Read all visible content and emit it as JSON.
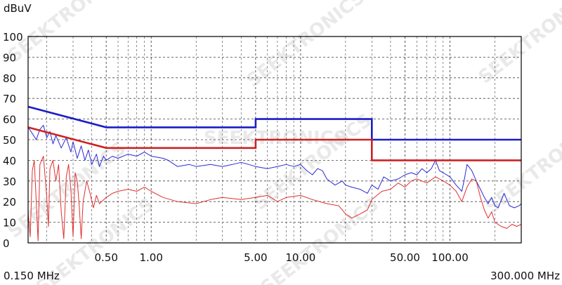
{
  "watermark": "SEEKTRONICS",
  "chart_data": {
    "type": "line",
    "title": "",
    "ylabel": "dBuV",
    "xlabel": "",
    "x_scale": "log",
    "xlim": [
      0.15,
      300
    ],
    "ylim": [
      0,
      100
    ],
    "grid": true,
    "x_start_label": "0.150 MHz",
    "x_end_label": "300.000 MHz",
    "x_tick_values": [
      0.5,
      1,
      5,
      10,
      50,
      100
    ],
    "x_tick_labels": [
      "0.50",
      "1.00",
      "5.00",
      "10.00",
      "50.00",
      "100.00"
    ],
    "y_ticks": [
      0,
      10,
      20,
      30,
      40,
      50,
      60,
      70,
      80,
      90,
      100
    ],
    "limit_lines": [
      {
        "color": "#1c1cc8",
        "points": [
          [
            0.15,
            66
          ],
          [
            0.5,
            56
          ],
          [
            5,
            56
          ],
          [
            5,
            60
          ],
          [
            30,
            60
          ],
          [
            30,
            50
          ],
          [
            300,
            50
          ]
        ]
      },
      {
        "color": "#cc2222",
        "points": [
          [
            0.15,
            56
          ],
          [
            0.5,
            46
          ],
          [
            5,
            46
          ],
          [
            5,
            50
          ],
          [
            30,
            50
          ],
          [
            30,
            40
          ],
          [
            300,
            40
          ]
        ]
      }
    ],
    "series": [
      {
        "color": "#2a2ad8",
        "points": [
          [
            0.15,
            56
          ],
          [
            0.16,
            53
          ],
          [
            0.17,
            50
          ],
          [
            0.18,
            55
          ],
          [
            0.19,
            57
          ],
          [
            0.2,
            51
          ],
          [
            0.21,
            54
          ],
          [
            0.22,
            48
          ],
          [
            0.23,
            52
          ],
          [
            0.25,
            46
          ],
          [
            0.27,
            51
          ],
          [
            0.29,
            44
          ],
          [
            0.3,
            49
          ],
          [
            0.32,
            41
          ],
          [
            0.34,
            47
          ],
          [
            0.36,
            40
          ],
          [
            0.38,
            45
          ],
          [
            0.4,
            38
          ],
          [
            0.43,
            43
          ],
          [
            0.45,
            37
          ],
          [
            0.48,
            42
          ],
          [
            0.5,
            40
          ],
          [
            0.55,
            42
          ],
          [
            0.6,
            41
          ],
          [
            0.7,
            43
          ],
          [
            0.8,
            42
          ],
          [
            0.9,
            44
          ],
          [
            1.0,
            42
          ],
          [
            1.2,
            41
          ],
          [
            1.3,
            40
          ],
          [
            1.5,
            37
          ],
          [
            1.8,
            38
          ],
          [
            2.0,
            37
          ],
          [
            2.5,
            38
          ],
          [
            3.0,
            37
          ],
          [
            3.5,
            38
          ],
          [
            4.0,
            39
          ],
          [
            4.5,
            38
          ],
          [
            5.0,
            37
          ],
          [
            6.0,
            36
          ],
          [
            7.0,
            37
          ],
          [
            8.0,
            38
          ],
          [
            9.0,
            37
          ],
          [
            10,
            38
          ],
          [
            11,
            35
          ],
          [
            12,
            33
          ],
          [
            13,
            36
          ],
          [
            14,
            35
          ],
          [
            15,
            31
          ],
          [
            17,
            28
          ],
          [
            19,
            30
          ],
          [
            20,
            28
          ],
          [
            22,
            27
          ],
          [
            25,
            26
          ],
          [
            28,
            24
          ],
          [
            30,
            28
          ],
          [
            33,
            26
          ],
          [
            36,
            32
          ],
          [
            40,
            30
          ],
          [
            45,
            31
          ],
          [
            50,
            33
          ],
          [
            55,
            34
          ],
          [
            60,
            33
          ],
          [
            65,
            36
          ],
          [
            70,
            34
          ],
          [
            75,
            36
          ],
          [
            80,
            40
          ],
          [
            85,
            35
          ],
          [
            90,
            34
          ],
          [
            100,
            32
          ],
          [
            110,
            28
          ],
          [
            120,
            25
          ],
          [
            125,
            31
          ],
          [
            130,
            38
          ],
          [
            140,
            35
          ],
          [
            150,
            30
          ],
          [
            160,
            26
          ],
          [
            170,
            22
          ],
          [
            180,
            19
          ],
          [
            190,
            22
          ],
          [
            200,
            18
          ],
          [
            210,
            17
          ],
          [
            230,
            24
          ],
          [
            250,
            18
          ],
          [
            270,
            17
          ],
          [
            290,
            18
          ],
          [
            300,
            19
          ]
        ]
      },
      {
        "color": "#e03030",
        "points": [
          [
            0.15,
            15
          ],
          [
            0.155,
            3
          ],
          [
            0.16,
            35
          ],
          [
            0.165,
            40
          ],
          [
            0.17,
            20
          ],
          [
            0.175,
            1
          ],
          [
            0.18,
            38
          ],
          [
            0.19,
            42
          ],
          [
            0.2,
            22
          ],
          [
            0.205,
            8
          ],
          [
            0.21,
            36
          ],
          [
            0.22,
            40
          ],
          [
            0.23,
            30
          ],
          [
            0.24,
            38
          ],
          [
            0.25,
            15
          ],
          [
            0.26,
            2
          ],
          [
            0.27,
            32
          ],
          [
            0.28,
            38
          ],
          [
            0.29,
            26
          ],
          [
            0.3,
            3
          ],
          [
            0.31,
            34
          ],
          [
            0.32,
            30
          ],
          [
            0.33,
            18
          ],
          [
            0.34,
            2
          ],
          [
            0.35,
            20
          ],
          [
            0.37,
            30
          ],
          [
            0.39,
            24
          ],
          [
            0.41,
            17
          ],
          [
            0.43,
            23
          ],
          [
            0.45,
            19
          ],
          [
            0.5,
            22
          ],
          [
            0.55,
            24
          ],
          [
            0.6,
            25
          ],
          [
            0.7,
            26
          ],
          [
            0.8,
            25
          ],
          [
            0.9,
            27
          ],
          [
            1.0,
            25
          ],
          [
            1.2,
            22
          ],
          [
            1.5,
            20
          ],
          [
            2.0,
            19
          ],
          [
            2.5,
            21
          ],
          [
            3.0,
            22
          ],
          [
            4.0,
            21
          ],
          [
            5.0,
            22
          ],
          [
            6.0,
            23
          ],
          [
            7.0,
            20
          ],
          [
            8.0,
            22
          ],
          [
            10,
            23
          ],
          [
            12,
            21
          ],
          [
            15,
            19
          ],
          [
            18,
            18
          ],
          [
            20,
            14
          ],
          [
            22,
            12
          ],
          [
            25,
            14
          ],
          [
            28,
            16
          ],
          [
            30,
            21
          ],
          [
            35,
            25
          ],
          [
            40,
            26
          ],
          [
            45,
            29
          ],
          [
            50,
            27
          ],
          [
            55,
            30
          ],
          [
            60,
            31
          ],
          [
            65,
            30
          ],
          [
            70,
            29
          ],
          [
            80,
            32
          ],
          [
            90,
            30
          ],
          [
            100,
            28
          ],
          [
            110,
            25
          ],
          [
            120,
            20
          ],
          [
            130,
            27
          ],
          [
            140,
            31
          ],
          [
            150,
            30
          ],
          [
            160,
            22
          ],
          [
            170,
            16
          ],
          [
            180,
            12
          ],
          [
            190,
            15
          ],
          [
            200,
            10
          ],
          [
            220,
            8
          ],
          [
            240,
            7
          ],
          [
            260,
            9
          ],
          [
            280,
            8
          ],
          [
            300,
            9
          ]
        ]
      }
    ]
  }
}
